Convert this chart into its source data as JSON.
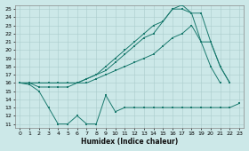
{
  "xlabel": "Humidex (Indice chaleur)",
  "bg_color": "#cce8e8",
  "grid_color": "#aacccc",
  "line_color": "#1a7a6e",
  "xlim": [
    -0.5,
    23.5
  ],
  "ylim": [
    10.5,
    25.5
  ],
  "xticks": [
    0,
    1,
    2,
    3,
    4,
    5,
    6,
    7,
    8,
    9,
    10,
    11,
    12,
    13,
    14,
    15,
    16,
    17,
    18,
    19,
    20,
    21,
    22,
    23
  ],
  "yticks": [
    11,
    12,
    13,
    14,
    15,
    16,
    17,
    18,
    19,
    20,
    21,
    22,
    23,
    24,
    25
  ],
  "series1_x": [
    0,
    1,
    2,
    3,
    4,
    5,
    6,
    7,
    8,
    9,
    10,
    11,
    12,
    13,
    14,
    15,
    16,
    17,
    18,
    19,
    20,
    21,
    22,
    23
  ],
  "series1_y": [
    16.0,
    15.8,
    15.0,
    13.0,
    11.0,
    11.0,
    12.0,
    11.0,
    11.0,
    14.5,
    12.5,
    13.0,
    13.0,
    13.0,
    13.0,
    13.0,
    13.0,
    13.0,
    13.0,
    13.0,
    13.0,
    13.0,
    13.0,
    13.5
  ],
  "series2_x": [
    0,
    1,
    2,
    3,
    4,
    5,
    6,
    7,
    8,
    9,
    10,
    11,
    12,
    13,
    14,
    15,
    16,
    17,
    18,
    19,
    20,
    21,
    22,
    23
  ],
  "series2_y": [
    16.0,
    16.0,
    15.5,
    15.5,
    15.5,
    15.5,
    16.0,
    16.0,
    16.5,
    17.0,
    17.5,
    18.0,
    18.5,
    19.0,
    19.5,
    20.5,
    21.5,
    22.0,
    23.0,
    21.0,
    18.0,
    16.0,
    null,
    null
  ],
  "series3_x": [
    0,
    1,
    2,
    3,
    4,
    5,
    6,
    7,
    8,
    9,
    10,
    11,
    12,
    13,
    14,
    15,
    16,
    17,
    18,
    19,
    20,
    21,
    22,
    23
  ],
  "series3_y": [
    16.0,
    16.0,
    16.0,
    16.0,
    16.0,
    16.0,
    16.0,
    16.5,
    17.0,
    17.5,
    18.5,
    19.5,
    20.5,
    21.5,
    22.0,
    23.5,
    25.0,
    25.5,
    24.5,
    24.5,
    21.0,
    18.0,
    16.0,
    null
  ],
  "series4_x": [
    0,
    1,
    2,
    3,
    4,
    5,
    6,
    7,
    8,
    9,
    10,
    11,
    12,
    13,
    14,
    15,
    16,
    17,
    18,
    19,
    20,
    21,
    22,
    23
  ],
  "series4_y": [
    16.0,
    16.0,
    16.0,
    16.0,
    16.0,
    16.0,
    16.0,
    16.5,
    17.0,
    18.0,
    19.0,
    20.0,
    21.0,
    22.0,
    23.0,
    23.5,
    25.0,
    25.0,
    24.5,
    21.0,
    21.0,
    18.0,
    16.0,
    null
  ]
}
